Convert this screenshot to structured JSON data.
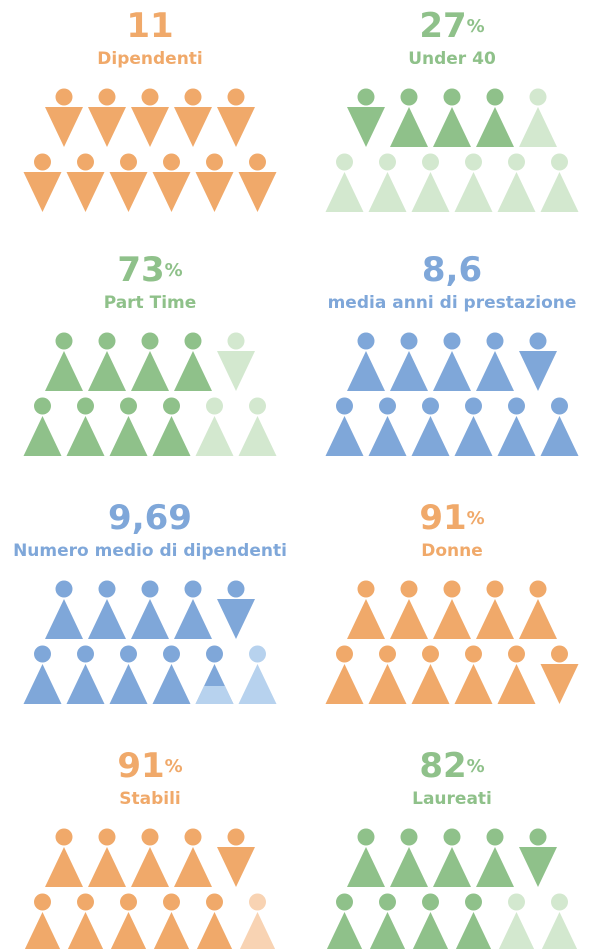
{
  "panels": [
    {
      "value": "11",
      "label": "Dipendenti",
      "color": "#f0a96a",
      "light_color": "#f8d3b3"
    },
    {
      "value": "27",
      "unit": "%",
      "label": "Under 40",
      "color": "#8fc18a",
      "light_color": "#d3e8cf"
    },
    {
      "value": "73",
      "unit": "%",
      "label": "Part Time",
      "color": "#8fc18a",
      "light_color": "#d3e8cf"
    },
    {
      "value": "8,6",
      "label": "media anni di prestazione",
      "color": "#7fa7d9",
      "light_color": "#b7d2ee"
    },
    {
      "value": "9,69",
      "label": "Numero medio di dipendenti",
      "color": "#7fa7d9",
      "light_color": "#b7d2ee"
    },
    {
      "value": "91",
      "unit": "%",
      "label": "Donne",
      "color": "#f0a96a",
      "light_color": "#f8d3b3"
    },
    {
      "value": "91",
      "unit": "%",
      "label": "Stabili",
      "color": "#f0a96a",
      "light_color": "#f8d3b3"
    },
    {
      "value": "82",
      "unit": "%",
      "label": "Laureati",
      "color": "#8fc18a",
      "light_color": "#d3e8cf"
    }
  ]
}
